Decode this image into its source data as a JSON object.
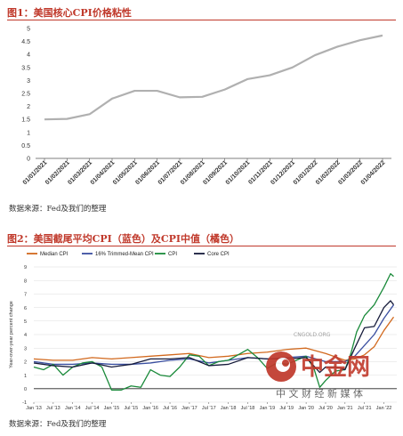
{
  "figure1": {
    "title": "图1：美国核心CPI价格粘性",
    "source": "数据来源：Fed及我们的整理"
  },
  "figure2": {
    "title": "图2：美国截尾平均CPI（蓝色）及CPI中值（橘色）",
    "source": "数据来源：Fed及我们的整理",
    "legend": [
      "Median CPI",
      "16% Trimmed-Mean CPI",
      "CPI",
      "Core CPI"
    ]
  },
  "watermark": {
    "brand": "中金网",
    "url": "CNGOLD.ORG",
    "tagline": "中 文 财 经 新 媒 体"
  },
  "chart_data": [
    {
      "type": "line",
      "title": "图1：美国核心CPI价格粘性",
      "x": [
        "01/01/2021",
        "01/02/2021",
        "01/03/2021",
        "01/04/2021",
        "01/05/2021",
        "01/06/2021",
        "01/07/2021",
        "01/08/2021",
        "01/09/2021",
        "01/10/2021",
        "01/11/2021",
        "01/12/2021",
        "01/01/2022",
        "01/02/2022",
        "01/03/2022",
        "01/04/2022"
      ],
      "y": [
        1.5,
        1.52,
        1.7,
        2.3,
        2.6,
        2.6,
        2.35,
        2.37,
        2.65,
        3.05,
        3.2,
        3.5,
        3.97,
        4.3,
        4.55,
        4.73
      ],
      "ylim": [
        0,
        5
      ],
      "yticks": [
        0,
        0.5,
        1,
        1.5,
        2,
        2.5,
        3,
        3.5,
        4,
        4.5,
        5
      ],
      "color": "#b0b0b0",
      "grid": false
    },
    {
      "type": "line",
      "ylabel": "Year-over-year percent change",
      "ylim": [
        -1,
        9
      ],
      "yticks": [
        -1,
        0,
        1,
        2,
        3,
        4,
        5,
        6,
        7,
        8,
        9
      ],
      "xlim": [
        2013,
        2022.33
      ],
      "xticks": [
        "Jan '13",
        "Jul '13",
        "Jan '14",
        "Jul '14",
        "Jan '15",
        "Jul '15",
        "Jan '16",
        "Jul '16",
        "Jan '17",
        "Jul '17",
        "Jan '18",
        "Jul '18",
        "Jan '19",
        "Jul '19",
        "Jan '20",
        "Jul '20",
        "Jan '21",
        "Jul '21",
        "Jan '22"
      ],
      "grid": true,
      "legend_position": "top",
      "series": [
        {
          "name": "Median CPI",
          "color": "#d2691e",
          "x": [
            2013,
            2013.5,
            2014,
            2014.5,
            2015,
            2015.5,
            2016,
            2016.5,
            2017,
            2017.5,
            2018,
            2018.5,
            2019,
            2019.5,
            2020,
            2020.5,
            2021,
            2021.25,
            2021.5,
            2021.75,
            2022,
            2022.25
          ],
          "y": [
            2.2,
            2.1,
            2.1,
            2.3,
            2.2,
            2.3,
            2.4,
            2.5,
            2.6,
            2.3,
            2.4,
            2.6,
            2.7,
            2.9,
            3.0,
            2.6,
            2.1,
            2.2,
            2.5,
            3.1,
            4.3,
            5.3
          ]
        },
        {
          "name": "16% Trimmed-Mean CPI",
          "color": "#3a4fa0",
          "x": [
            2013,
            2013.5,
            2014,
            2014.5,
            2015,
            2015.5,
            2016,
            2016.5,
            2017,
            2017.5,
            2018,
            2018.5,
            2019,
            2019.5,
            2020,
            2020.5,
            2021,
            2021.25,
            2021.5,
            2021.75,
            2022,
            2022.25
          ],
          "y": [
            2.0,
            1.8,
            1.8,
            1.9,
            1.8,
            1.8,
            1.9,
            2.1,
            2.2,
            1.9,
            2.1,
            2.3,
            2.2,
            2.3,
            2.4,
            2.0,
            2.0,
            2.4,
            3.2,
            4.0,
            5.2,
            6.2
          ]
        },
        {
          "name": "CPI",
          "color": "#1a8a3a",
          "x": [
            2013,
            2013.25,
            2013.5,
            2013.75,
            2014,
            2014.25,
            2014.5,
            2014.75,
            2015,
            2015.25,
            2015.5,
            2015.75,
            2016,
            2016.25,
            2016.5,
            2016.75,
            2017,
            2017.25,
            2017.5,
            2017.75,
            2018,
            2018.25,
            2018.5,
            2018.75,
            2019,
            2019.25,
            2019.5,
            2019.75,
            2020,
            2020.2,
            2020.35,
            2020.5,
            2020.75,
            2021,
            2021.15,
            2021.3,
            2021.5,
            2021.75,
            2022,
            2022.17,
            2022.25
          ],
          "y": [
            1.6,
            1.4,
            1.8,
            1.0,
            1.6,
            1.9,
            2.0,
            1.6,
            -0.1,
            -0.1,
            0.2,
            0.1,
            1.4,
            1.0,
            0.9,
            1.6,
            2.5,
            2.4,
            1.7,
            2.0,
            2.1,
            2.5,
            2.9,
            2.3,
            1.5,
            1.9,
            1.8,
            2.1,
            2.4,
            1.5,
            0.1,
            0.6,
            1.3,
            1.4,
            2.6,
            4.2,
            5.4,
            6.2,
            7.5,
            8.5,
            8.3
          ]
        },
        {
          "name": "Core CPI",
          "color": "#151a3a",
          "x": [
            2013,
            2013.5,
            2014,
            2014.5,
            2015,
            2015.5,
            2016,
            2016.5,
            2017,
            2017.5,
            2018,
            2018.5,
            2019,
            2019.5,
            2020,
            2020.35,
            2020.5,
            2020.75,
            2021,
            2021.25,
            2021.5,
            2021.75,
            2022,
            2022.17,
            2022.25
          ],
          "y": [
            1.9,
            1.7,
            1.6,
            1.9,
            1.6,
            1.8,
            2.2,
            2.2,
            2.3,
            1.7,
            1.8,
            2.3,
            2.2,
            2.2,
            2.3,
            1.2,
            1.6,
            1.6,
            1.4,
            3.0,
            4.5,
            4.6,
            6.0,
            6.5,
            6.2
          ]
        }
      ]
    }
  ]
}
